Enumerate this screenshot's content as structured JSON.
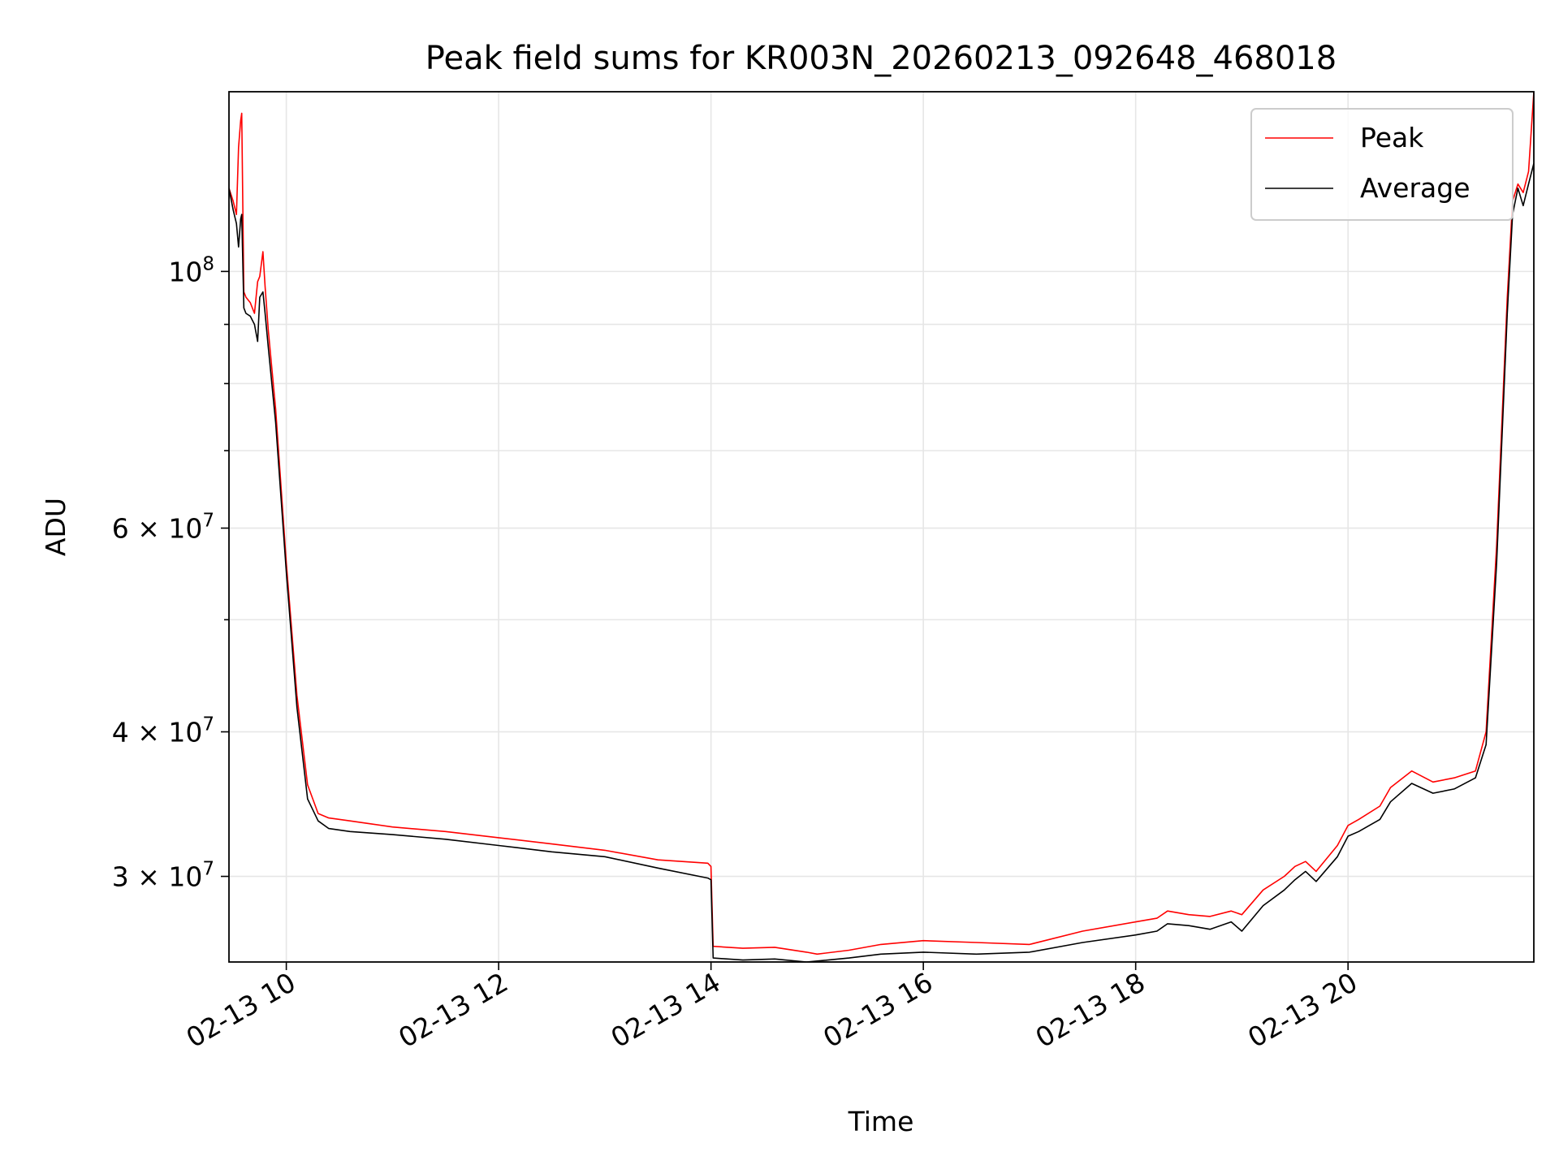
{
  "chart_data": {
    "type": "line",
    "title": "Peak field sums for KR003N_20260213_092648_468018",
    "xlabel": "Time",
    "ylabel": "ADU",
    "yscale": "log",
    "grid": true,
    "legend_position": "top-right",
    "xlim": [
      9.46,
      21.75
    ],
    "ylim": [
      25300000,
      143000000
    ],
    "x_ticks": [
      {
        "value": 10,
        "label": "02-13 10"
      },
      {
        "value": 12,
        "label": "02-13 12"
      },
      {
        "value": 14,
        "label": "02-13 14"
      },
      {
        "value": 16,
        "label": "02-13 16"
      },
      {
        "value": 18,
        "label": "02-13 18"
      },
      {
        "value": 20,
        "label": "02-13 20"
      }
    ],
    "y_ticks": [
      {
        "value": 100000000,
        "label": "10",
        "exp": "8"
      },
      {
        "value": 60000000,
        "label": "6 × 10",
        "exp": "7"
      },
      {
        "value": 40000000,
        "label": "4 × 10",
        "exp": "7"
      },
      {
        "value": 30000000,
        "label": "3 × 10",
        "exp": "7"
      }
    ],
    "y_minor_gridlines": [
      90000000,
      80000000,
      70000000,
      50000000
    ],
    "series": [
      {
        "name": "Peak",
        "color": "#ff0000",
        "x": [
          9.46,
          9.5,
          9.53,
          9.55,
          9.57,
          9.58,
          9.6,
          9.62,
          9.66,
          9.7,
          9.73,
          9.75,
          9.78,
          9.8,
          9.83,
          9.9,
          10.0,
          10.1,
          10.2,
          10.3,
          10.4,
          10.6,
          10.8,
          11.0,
          11.5,
          12.0,
          12.5,
          13.0,
          13.5,
          13.97,
          14.0,
          14.02,
          14.3,
          14.6,
          14.9,
          15.0,
          15.3,
          15.6,
          16.0,
          16.5,
          17.0,
          17.5,
          18.0,
          18.2,
          18.3,
          18.5,
          18.7,
          18.9,
          19.0,
          19.2,
          19.4,
          19.5,
          19.6,
          19.7,
          19.9,
          20.0,
          20.1,
          20.3,
          20.4,
          20.6,
          20.8,
          21.0,
          21.2,
          21.3,
          21.4,
          21.5,
          21.55,
          21.6,
          21.65,
          21.7,
          21.75
        ],
        "y": [
          118000000,
          115000000,
          112000000,
          128000000,
          135000000,
          137000000,
          96000000,
          95000000,
          94000000,
          92000000,
          98000000,
          99000000,
          104000000,
          97000000,
          89000000,
          76000000,
          56000000,
          43000000,
          36000000,
          34000000,
          33700000,
          33500000,
          33300000,
          33100000,
          32800000,
          32400000,
          32000000,
          31600000,
          31000000,
          30800000,
          30600000,
          26100000,
          26000000,
          26050000,
          25800000,
          25700000,
          25900000,
          26200000,
          26400000,
          26300000,
          26200000,
          26900000,
          27400000,
          27600000,
          28000000,
          27800000,
          27700000,
          28000000,
          27800000,
          29200000,
          30000000,
          30600000,
          30900000,
          30300000,
          31900000,
          33200000,
          33600000,
          34500000,
          35800000,
          37000000,
          36200000,
          36500000,
          37000000,
          40000000,
          58000000,
          95000000,
          115000000,
          119000000,
          117000000,
          122000000,
          143000000
        ]
      },
      {
        "name": "Average",
        "color": "#000000",
        "x": [
          9.46,
          9.5,
          9.53,
          9.55,
          9.57,
          9.58,
          9.6,
          9.62,
          9.66,
          9.7,
          9.73,
          9.75,
          9.78,
          9.8,
          9.83,
          9.9,
          10.0,
          10.1,
          10.2,
          10.3,
          10.4,
          10.6,
          10.8,
          11.0,
          11.5,
          12.0,
          12.5,
          13.0,
          13.5,
          13.97,
          14.0,
          14.02,
          14.3,
          14.6,
          14.9,
          15.0,
          15.3,
          15.6,
          16.0,
          16.5,
          17.0,
          17.5,
          18.0,
          18.2,
          18.3,
          18.5,
          18.7,
          18.9,
          19.0,
          19.2,
          19.4,
          19.5,
          19.6,
          19.7,
          19.9,
          20.0,
          20.1,
          20.3,
          20.4,
          20.6,
          20.8,
          21.0,
          21.2,
          21.3,
          21.4,
          21.5,
          21.55,
          21.6,
          21.65,
          21.7,
          21.75
        ],
        "y": [
          118000000,
          113000000,
          110000000,
          105000000,
          111000000,
          112000000,
          93000000,
          92000000,
          91500000,
          90000000,
          87000000,
          95000000,
          96000000,
          92000000,
          86000000,
          74000000,
          55000000,
          42000000,
          35000000,
          33500000,
          33000000,
          32800000,
          32700000,
          32600000,
          32300000,
          31900000,
          31500000,
          31200000,
          30500000,
          29900000,
          29800000,
          25500000,
          25400000,
          25450000,
          25300000,
          25350000,
          25500000,
          25700000,
          25800000,
          25700000,
          25800000,
          26300000,
          26700000,
          26900000,
          27300000,
          27200000,
          27000000,
          27400000,
          26900000,
          28300000,
          29200000,
          29800000,
          30300000,
          29700000,
          31200000,
          32500000,
          32800000,
          33600000,
          34800000,
          36100000,
          35400000,
          35700000,
          36500000,
          39000000,
          56000000,
          92000000,
          112000000,
          118000000,
          114000000,
          119000000,
          124000000
        ]
      }
    ]
  }
}
